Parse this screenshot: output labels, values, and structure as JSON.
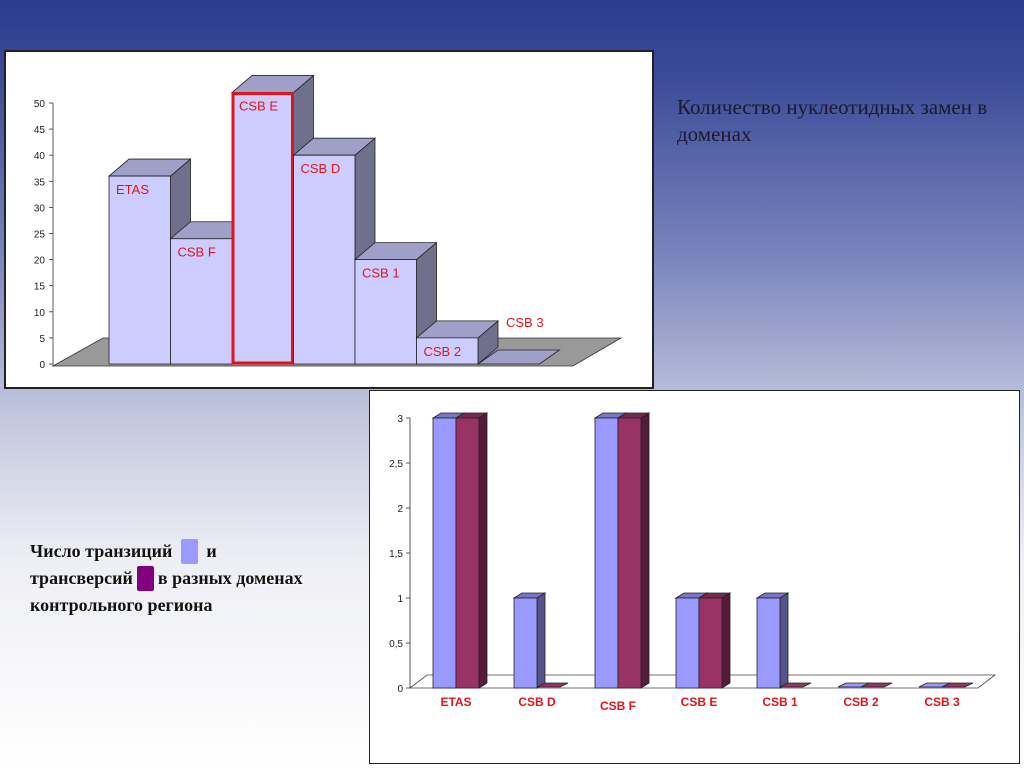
{
  "slide": {
    "heading": "Количество нуклеотидных замен в доменах",
    "caption_part1": "Число транзиций",
    "caption_part2": "и",
    "caption_part3": "трансверсий",
    "caption_part4": "в разных доменах контрольного региона"
  },
  "colors": {
    "transitions": "#9999ff",
    "transversions": "#993366",
    "bar_front": "#ccccff",
    "highlight_border": "#e0151b",
    "label_red": "#e0151b"
  },
  "chart_data": [
    {
      "type": "bar",
      "title": "",
      "xlabel": "",
      "ylabel": "",
      "ylim": [
        0,
        50
      ],
      "yticks": [
        "0",
        "5",
        "10",
        "15",
        "20",
        "25",
        "30",
        "35",
        "40",
        "45",
        "50"
      ],
      "categories": [
        "ETAS",
        "CSB F",
        "CSB E",
        "CSB D",
        "CSB 1",
        "CSB 2",
        "CSB 3"
      ],
      "values": [
        36,
        24,
        52,
        40,
        20,
        5,
        0
      ],
      "highlighted": "CSB E",
      "grid": false
    },
    {
      "type": "bar",
      "title": "",
      "xlabel": "",
      "ylabel": "",
      "ylim": [
        0,
        3
      ],
      "yticks": [
        "0",
        "0,5",
        "1",
        "1,5",
        "2",
        "2,5",
        "3"
      ],
      "categories": [
        "ETAS",
        "CSB D",
        "CSB F",
        "CSB E",
        "CSB 1",
        "CSB 2",
        "CSB 3"
      ],
      "series": [
        {
          "values": [
            3,
            1,
            3,
            1,
            1,
            0,
            0
          ]
        },
        {
          "values": [
            3,
            0,
            3,
            1,
            0,
            0,
            0
          ]
        }
      ],
      "grid": false
    }
  ]
}
